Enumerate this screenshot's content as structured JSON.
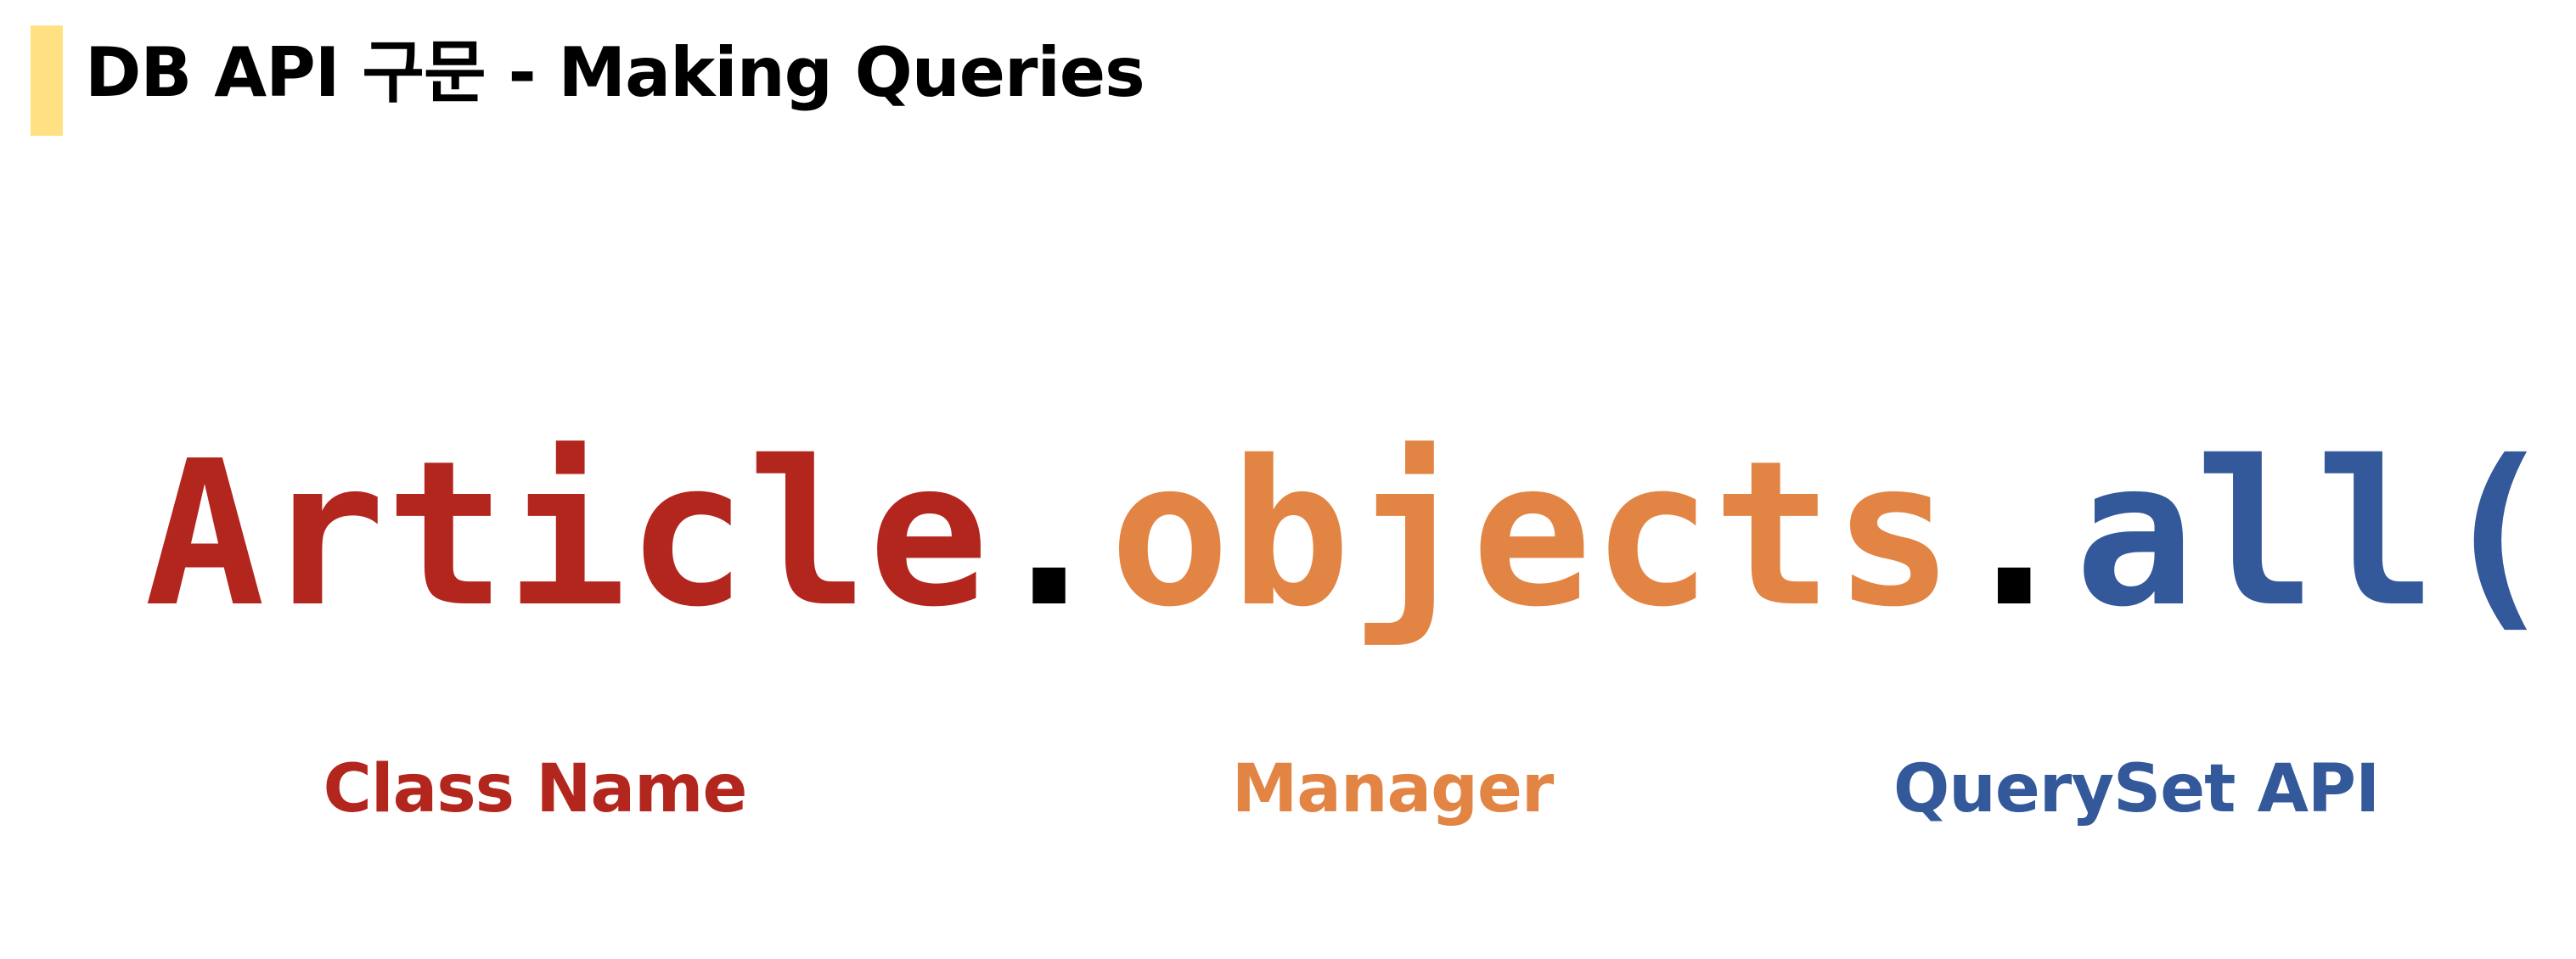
{
  "slide": {
    "title": "DB API 구문 - Making Queries",
    "accent_bar_color": "#FFE082"
  },
  "code": {
    "class_name": "Article",
    "dot1": ".",
    "manager": "objects",
    "dot2": ".",
    "api": "all()"
  },
  "labels": {
    "class_name": "Class Name",
    "manager": "Manager",
    "api": "QuerySet API"
  },
  "colors": {
    "class_name": "#B3261E",
    "manager": "#E28443",
    "api": "#33599B",
    "dot": "#000000"
  }
}
